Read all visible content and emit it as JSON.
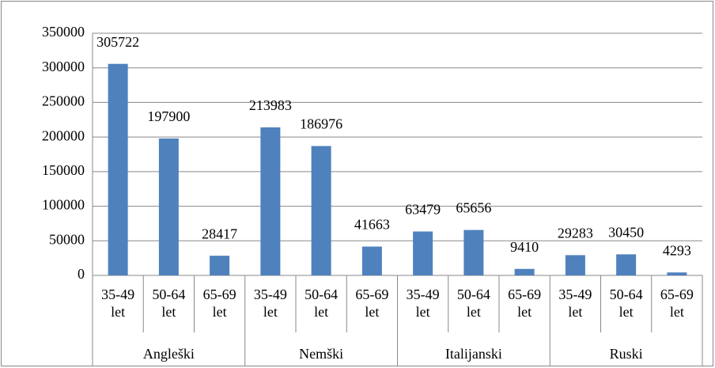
{
  "chart_data": {
    "type": "bar",
    "groups": [
      "Angleški",
      "Nemški",
      "Italijanski",
      "Ruski"
    ],
    "categories": [
      "35-49 let",
      "50-64 let",
      "65-69 let",
      "35-49 let",
      "50-64 let",
      "65-69 let",
      "35-49 let",
      "50-64 let",
      "65-69 let",
      "35-49 let",
      "50-64 let",
      "65-69 let"
    ],
    "values": [
      305722,
      197900,
      28417,
      213983,
      186976,
      41663,
      63479,
      65656,
      9410,
      29283,
      30450,
      4293
    ],
    "color": "#4f81bd",
    "ylim": [
      0,
      350000
    ],
    "yticks": [
      0,
      50000,
      100000,
      150000,
      200000,
      250000,
      300000,
      350000
    ],
    "grid": true
  }
}
